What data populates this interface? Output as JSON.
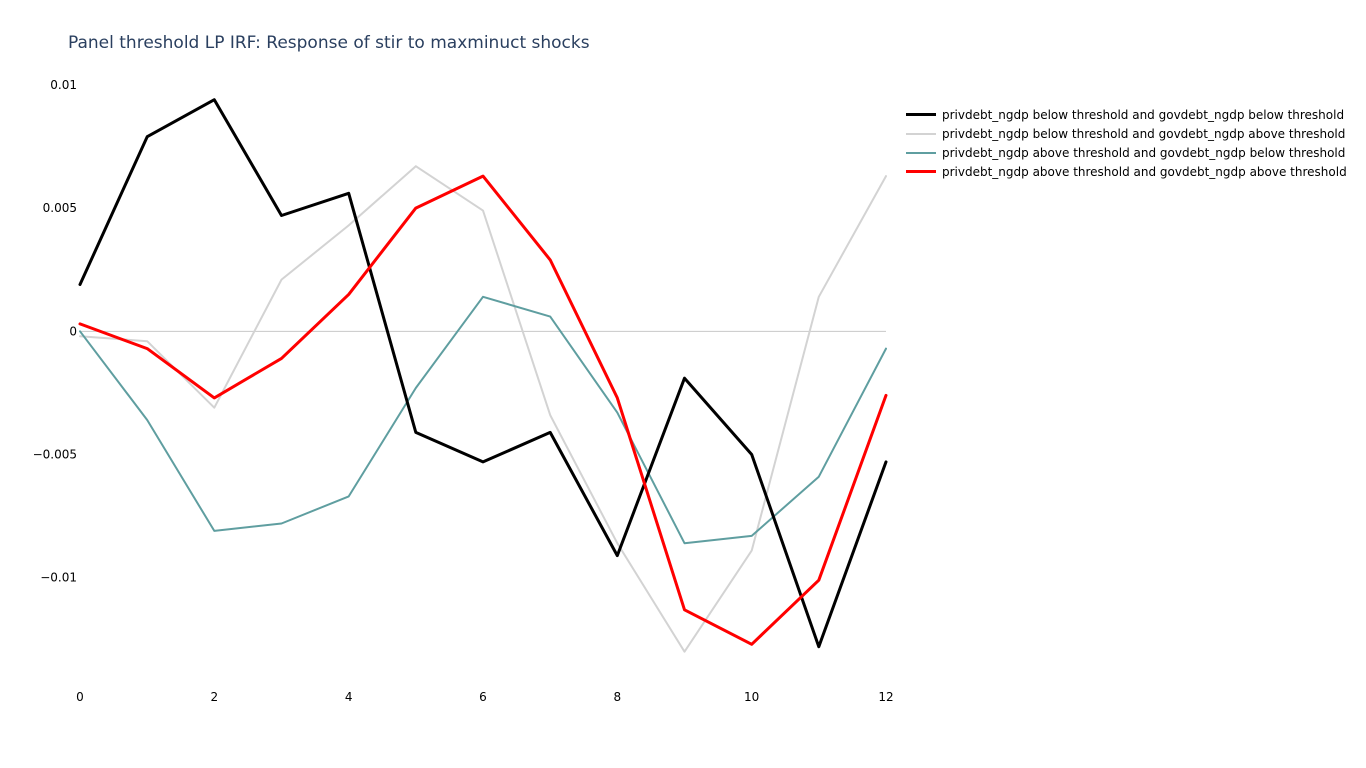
{
  "chart_data": {
    "type": "line",
    "title": "Panel threshold LP IRF: Response of stir to maxminuct shocks",
    "xlabel": "",
    "ylabel": "",
    "x": [
      0,
      1,
      2,
      3,
      4,
      5,
      6,
      7,
      8,
      9,
      10,
      11,
      12
    ],
    "xlim": [
      0,
      12
    ],
    "ylim": [
      -0.01415,
      0.0102
    ],
    "x_ticks": [
      0,
      2,
      4,
      6,
      8,
      10,
      12
    ],
    "x_tick_labels": [
      "0",
      "2",
      "4",
      "6",
      "8",
      "10",
      "12"
    ],
    "y_ticks": [
      0.01,
      0.005,
      0,
      -0.005,
      -0.01
    ],
    "y_tick_labels": [
      "0.01",
      "0.005",
      "0",
      "−0.005",
      "−0.01"
    ],
    "grid": false,
    "zero_line": true,
    "legend_position": "top-right",
    "series": [
      {
        "name": "privdebt_ngdp below threshold and govdebt_ngdp below threshold",
        "color": "#000000",
        "width": 3,
        "values": [
          0.0019,
          0.0079,
          0.0094,
          0.0047,
          0.0056,
          -0.0041,
          -0.0053,
          -0.0041,
          -0.0091,
          -0.0019,
          -0.005,
          -0.0128,
          -0.0053
        ]
      },
      {
        "name": "privdebt_ngdp below threshold and govdebt_ngdp above threshold",
        "color": "#d3d3d3",
        "width": 2,
        "values": [
          -0.0002,
          -0.0004,
          -0.0031,
          0.0021,
          0.0043,
          0.0067,
          0.0049,
          -0.0034,
          -0.0086,
          -0.013,
          -0.0089,
          0.0014,
          0.0063
        ]
      },
      {
        "name": "privdebt_ngdp above threshold and govdebt_ngdp below threshold",
        "color": "#5f9ea0",
        "width": 2,
        "values": [
          0.0,
          -0.0036,
          -0.0081,
          -0.0078,
          -0.0067,
          -0.0023,
          0.0014,
          0.0006,
          -0.0033,
          -0.0086,
          -0.0083,
          -0.0059,
          -0.0007
        ]
      },
      {
        "name": "privdebt_ngdp above threshold and govdebt_ngdp above threshold",
        "color": "#ff0000",
        "width": 3,
        "values": [
          0.0003,
          -0.0007,
          -0.0027,
          -0.0011,
          0.0015,
          0.005,
          0.0063,
          0.0029,
          -0.0027,
          -0.0113,
          -0.0127,
          -0.0101,
          -0.0026
        ]
      }
    ]
  }
}
